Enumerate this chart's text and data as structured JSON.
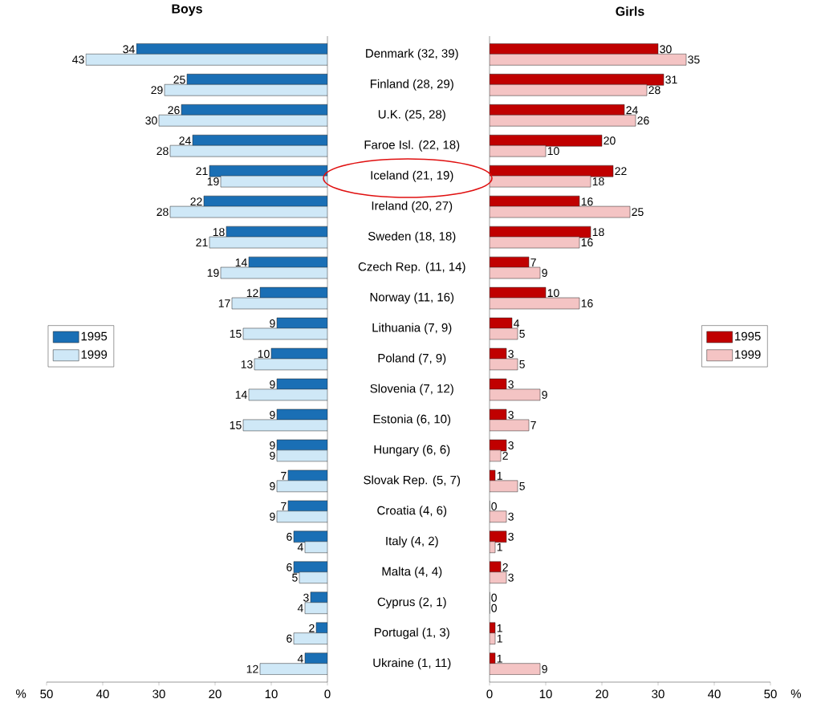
{
  "chart_data": [
    {
      "type": "bar",
      "orientation": "horizontal",
      "title": "Boys",
      "xlabel": "%",
      "categories": [
        "Denmark (32, 39)",
        "Finland (28, 29)",
        "U.K. (25, 28)",
        "Faroe Isl. (22, 18)",
        "Iceland (21, 19)",
        "Ireland (20, 27)",
        "Sweden (18, 18)",
        "Czech Rep. (11, 14)",
        "Norway (11, 16)",
        "Lithuania (7, 9)",
        "Poland (7, 9)",
        "Slovenia (7, 12)",
        "Estonia (6, 10)",
        "Hungary (6, 6)",
        "Slovak Rep. (5, 7)",
        "Croatia (4, 6)",
        "Italy (4, 2)",
        "Malta (4, 4)",
        "Cyprus (2, 1)",
        "Portugal (1, 3)",
        "Ukraine (1, 11)"
      ],
      "series": [
        {
          "name": "1995",
          "color": "#1a6fb5",
          "values": [
            34,
            25,
            26,
            24,
            21,
            22,
            18,
            14,
            12,
            9,
            10,
            9,
            9,
            9,
            7,
            7,
            6,
            6,
            3,
            2,
            4
          ]
        },
        {
          "name": "1999",
          "color": "#cfe8f7",
          "values": [
            43,
            29,
            30,
            28,
            19,
            28,
            21,
            19,
            17,
            15,
            13,
            14,
            15,
            9,
            9,
            9,
            4,
            5,
            4,
            6,
            12
          ]
        }
      ],
      "xlim": [
        50,
        0
      ],
      "xticks": [
        50,
        40,
        30,
        20,
        10,
        0
      ],
      "legend": "left",
      "data_labels": true
    },
    {
      "type": "bar",
      "orientation": "horizontal",
      "title": "Girls",
      "xlabel": "%",
      "categories": [
        null,
        null,
        null,
        null,
        null,
        null,
        null,
        null,
        null,
        null,
        null,
        null,
        null,
        null,
        null,
        null,
        null,
        null,
        null,
        null,
        null
      ],
      "series": [
        {
          "name": "1995",
          "color": "#c00000",
          "values": [
            30,
            31,
            24,
            20,
            22,
            16,
            18,
            7,
            10,
            4,
            3,
            3,
            3,
            3,
            1,
            0,
            3,
            2,
            0,
            1,
            1
          ]
        },
        {
          "name": "1999",
          "color": "#f4c4c4",
          "values": [
            35,
            28,
            26,
            10,
            18,
            25,
            16,
            9,
            16,
            5,
            5,
            9,
            7,
            2,
            5,
            3,
            1,
            3,
            0,
            1,
            9
          ]
        }
      ],
      "xlim": [
        0,
        50
      ],
      "xticks": [
        0,
        10,
        20,
        30,
        40,
        50
      ],
      "legend": "right",
      "data_labels": true,
      "tick_labels": "x"
    }
  ]
}
